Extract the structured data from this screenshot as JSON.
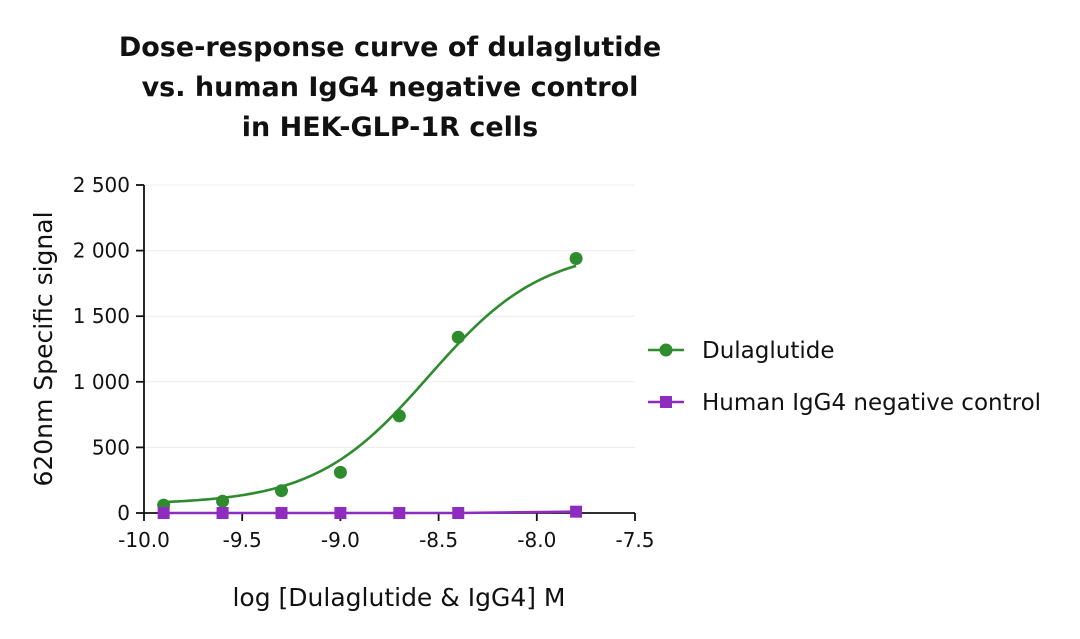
{
  "chart_data": {
    "type": "line",
    "title_lines": [
      "Dose-response curve of dulaglutide",
      "vs. human IgG4 negative control",
      "in HEK-GLP-1R cells"
    ],
    "xlabel": "log [Dulaglutide & IgG4] M",
    "ylabel": "620nm Specific signal",
    "xlim": [
      -10.0,
      -7.5
    ],
    "ylim": [
      0,
      2500
    ],
    "xticks": [
      -10.0,
      -9.5,
      -9.0,
      -8.5,
      -8.0,
      -7.5
    ],
    "xtick_labels": [
      "-10.0",
      "-9.5",
      "-9.0",
      "-8.5",
      "-8.0",
      "-7.5"
    ],
    "yticks": [
      0,
      500,
      1000,
      1500,
      2000,
      2500
    ],
    "ytick_labels": [
      "0",
      "500",
      "1 000",
      "1 500",
      "2 000",
      "2 500"
    ],
    "grid": "horizontal",
    "legend_position": "right",
    "series": [
      {
        "name": "Dulaglutide",
        "color": "#2e8b2e",
        "marker": "circle",
        "fit": "sigmoidal",
        "x": [
          -9.9,
          -9.6,
          -9.3,
          -9.0,
          -8.7,
          -8.4,
          -7.8
        ],
        "y": [
          60,
          90,
          170,
          310,
          740,
          1340,
          1940
        ]
      },
      {
        "name": "Human IgG4 negative control",
        "color": "#8e2cbf",
        "marker": "square",
        "fit": "linear",
        "x": [
          -9.9,
          -9.6,
          -9.3,
          -9.0,
          -8.7,
          -8.4,
          -7.8
        ],
        "y": [
          0,
          0,
          0,
          0,
          0,
          0,
          10
        ]
      }
    ]
  }
}
